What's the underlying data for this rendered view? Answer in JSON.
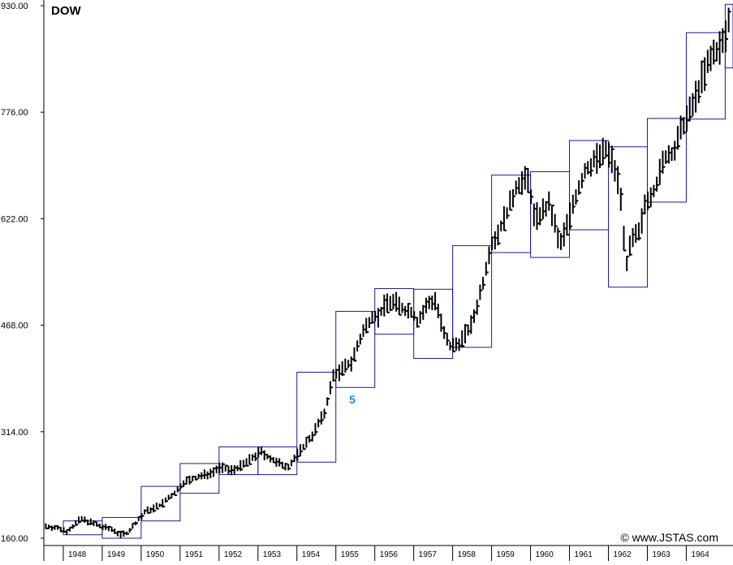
{
  "chart_data": {
    "type": "line",
    "title": "DOW",
    "watermark": "© www.JSTAS.com",
    "wave_label": "5",
    "ylim": [
      160,
      930
    ],
    "y_ticks": [
      "930.00",
      "776.00",
      "622.00",
      "468.00",
      "314.00",
      "160.00"
    ],
    "y_tick_values": [
      930,
      776,
      622,
      468,
      314,
      160
    ],
    "x_range": [
      1947.5,
      1965.2
    ],
    "x_tick_labels": [
      "1948",
      "1949",
      "1950",
      "1951",
      "1952",
      "1953",
      "1954",
      "1955",
      "1956",
      "1957",
      "1958",
      "1959",
      "1960",
      "1961",
      "1962",
      "1963",
      "1964"
    ],
    "x_tick_values": [
      1948,
      1949,
      1950,
      1951,
      1952,
      1953,
      1954,
      1955,
      1956,
      1957,
      1958,
      1959,
      1960,
      1961,
      1962,
      1963,
      1964
    ],
    "yearly_ranges": [
      {
        "year": 1948,
        "low": 165,
        "high": 185
      },
      {
        "year": 1949,
        "low": 160,
        "high": 190
      },
      {
        "year": 1950,
        "low": 185,
        "high": 235
      },
      {
        "year": 1951,
        "low": 225,
        "high": 268
      },
      {
        "year": 1952,
        "low": 252,
        "high": 292
      },
      {
        "year": 1953,
        "low": 252,
        "high": 292
      },
      {
        "year": 1954,
        "low": 270,
        "high": 400
      },
      {
        "year": 1955,
        "low": 378,
        "high": 488
      },
      {
        "year": 1956,
        "low": 455,
        "high": 521
      },
      {
        "year": 1957,
        "low": 420,
        "high": 520
      },
      {
        "year": 1958,
        "low": 436,
        "high": 583
      },
      {
        "year": 1959,
        "low": 573,
        "h": 0,
        "high": 685
      },
      {
        "year": 1960,
        "low": 566,
        "high": 690
      },
      {
        "year": 1961,
        "low": 606,
        "high": 735
      },
      {
        "year": 1962,
        "low": 523,
        "high": 726
      },
      {
        "year": 1963,
        "low": 646,
        "high": 767
      },
      {
        "year": 1964,
        "low": 766,
        "high": 891
      },
      {
        "year": 1965,
        "low": 840,
        "high": 940
      }
    ],
    "monthly_anchors": [
      [
        1947.5,
        178
      ],
      [
        1947.9,
        174
      ],
      [
        1948.1,
        170
      ],
      [
        1948.45,
        188
      ],
      [
        1948.75,
        182
      ],
      [
        1948.95,
        177
      ],
      [
        1949.3,
        172
      ],
      [
        1949.45,
        165
      ],
      [
        1949.65,
        168
      ],
      [
        1949.9,
        185
      ],
      [
        1950.1,
        198
      ],
      [
        1950.5,
        208
      ],
      [
        1950.95,
        230
      ],
      [
        1951.05,
        240
      ],
      [
        1951.45,
        248
      ],
      [
        1951.8,
        255
      ],
      [
        1952.0,
        262
      ],
      [
        1952.3,
        258
      ],
      [
        1952.6,
        265
      ],
      [
        1952.95,
        280
      ],
      [
        1953.05,
        286
      ],
      [
        1953.5,
        268
      ],
      [
        1953.8,
        264
      ],
      [
        1954.0,
        280
      ],
      [
        1954.4,
        310
      ],
      [
        1954.7,
        340
      ],
      [
        1954.95,
        398
      ],
      [
        1955.1,
        400
      ],
      [
        1955.4,
        415
      ],
      [
        1955.7,
        458
      ],
      [
        1955.95,
        484
      ],
      [
        1956.1,
        480
      ],
      [
        1956.3,
        502
      ],
      [
        1956.55,
        500
      ],
      [
        1956.75,
        490
      ],
      [
        1956.95,
        488
      ],
      [
        1957.1,
        472
      ],
      [
        1957.35,
        498
      ],
      [
        1957.55,
        505
      ],
      [
        1957.8,
        450
      ],
      [
        1957.95,
        435
      ],
      [
        1958.2,
        445
      ],
      [
        1958.5,
        470
      ],
      [
        1958.8,
        535
      ],
      [
        1958.95,
        580
      ],
      [
        1959.2,
        605
      ],
      [
        1959.5,
        645
      ],
      [
        1959.65,
        672
      ],
      [
        1959.95,
        678
      ],
      [
        1960.1,
        622
      ],
      [
        1960.3,
        632
      ],
      [
        1960.5,
        642
      ],
      [
        1960.75,
        582
      ],
      [
        1960.95,
        615
      ],
      [
        1961.1,
        645
      ],
      [
        1961.4,
        690
      ],
      [
        1961.7,
        710
      ],
      [
        1961.95,
        720
      ],
      [
        1962.1,
        706
      ],
      [
        1962.3,
        668
      ],
      [
        1962.45,
        555
      ],
      [
        1962.6,
        590
      ],
      [
        1962.8,
        600
      ],
      [
        1962.95,
        648
      ],
      [
        1963.2,
        666
      ],
      [
        1963.45,
        710
      ],
      [
        1963.7,
        720
      ],
      [
        1963.95,
        762
      ],
      [
        1964.1,
        775
      ],
      [
        1964.4,
        825
      ],
      [
        1964.7,
        860
      ],
      [
        1964.95,
        875
      ],
      [
        1965.1,
        908
      ]
    ]
  }
}
